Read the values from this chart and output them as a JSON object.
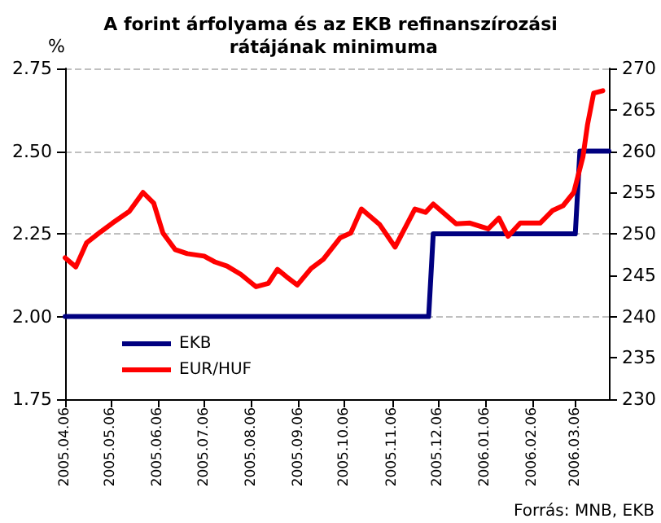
{
  "chart_data": {
    "type": "line",
    "title": "A forint árfolyama és az EKB refinanszírozási rátájának minimuma",
    "ylabel": "%",
    "annotations": [
      "Forrás: MNB, EKB"
    ],
    "xlim": [
      "2005-04-06",
      "2006-03-28"
    ],
    "xticks": [
      {
        "value": "2005-04-06",
        "label": "2005.04.06"
      },
      {
        "value": "2005-05-06",
        "label": "2005.05.06"
      },
      {
        "value": "2005-06-06",
        "label": "2005.06.06"
      },
      {
        "value": "2005-07-06",
        "label": "2005.07.06"
      },
      {
        "value": "2005-08-06",
        "label": "2005.08.06"
      },
      {
        "value": "2005-09-06",
        "label": "2005.09.06"
      },
      {
        "value": "2005-10-06",
        "label": "2005.10.06"
      },
      {
        "value": "2005-11-06",
        "label": "2005.11.06"
      },
      {
        "value": "2005-12-06",
        "label": "2005.12.06"
      },
      {
        "value": "2006-01-06",
        "label": "2006.01.06"
      },
      {
        "value": "2006-02-06",
        "label": "2006.02.06"
      },
      {
        "value": "2006-03-06",
        "label": "2006.03.06"
      }
    ],
    "ylim": [
      1.75,
      2.75
    ],
    "yticks": [
      1.75,
      {
        "value": 2,
        "label": "2.00"
      },
      2.25,
      {
        "value": 2.5,
        "label": "2.50"
      },
      2.75
    ],
    "y2lim": [
      230,
      270
    ],
    "y2ticks": [
      230,
      235,
      240,
      245,
      250,
      255,
      260,
      265,
      270
    ],
    "grid": "y",
    "legend": "bottom left",
    "marker": "none",
    "line_style": "solid",
    "series": [
      {
        "name": "EKB",
        "color": "#000080",
        "x": [
          "2005-04-06",
          "2005-11-30",
          "2005-12-03",
          "2006-03-06",
          "2006-03-09",
          "2006-03-28"
        ],
        "values": [
          2.0,
          2.0,
          2.25,
          2.25,
          2.5,
          2.5
        ]
      },
      {
        "name": "EUR/HUF",
        "color": "#ff0000",
        "axis": "y2",
        "x": [
          "2005-04-06",
          "2005-04-13",
          "2005-04-20",
          "2005-04-29",
          "2005-05-07",
          "2005-05-18",
          "2005-05-27",
          "2005-06-03",
          "2005-06-09",
          "2005-06-17",
          "2005-06-25",
          "2005-07-06",
          "2005-07-13",
          "2005-07-21",
          "2005-07-30",
          "2005-08-09",
          "2005-08-17",
          "2005-08-23",
          "2005-08-29",
          "2005-09-05",
          "2005-09-14",
          "2005-09-22",
          "2005-10-03",
          "2005-10-10",
          "2005-10-17",
          "2005-10-29",
          "2005-11-08",
          "2005-11-21",
          "2005-11-28",
          "2005-12-03",
          "2005-12-18",
          "2005-12-27",
          "2006-01-08",
          "2006-01-15",
          "2006-01-21",
          "2006-01-29",
          "2006-02-11",
          "2006-02-19",
          "2006-02-26",
          "2006-03-05",
          "2006-03-11",
          "2006-03-14",
          "2006-03-18",
          "2006-03-24"
        ],
        "values": [
          247.1,
          246.0,
          248.9,
          250.2,
          251.3,
          252.7,
          255.0,
          253.7,
          250.1,
          248.1,
          247.6,
          247.3,
          246.6,
          246.1,
          245.1,
          243.6,
          244.0,
          245.7,
          244.8,
          243.8,
          245.8,
          246.9,
          249.5,
          250.1,
          253.0,
          251.1,
          248.4,
          253.0,
          252.6,
          253.6,
          251.2,
          251.3,
          250.6,
          251.9,
          249.7,
          251.3,
          251.3,
          252.8,
          253.4,
          255.0,
          259.3,
          263.2,
          267.0,
          267.3
        ]
      }
    ]
  }
}
